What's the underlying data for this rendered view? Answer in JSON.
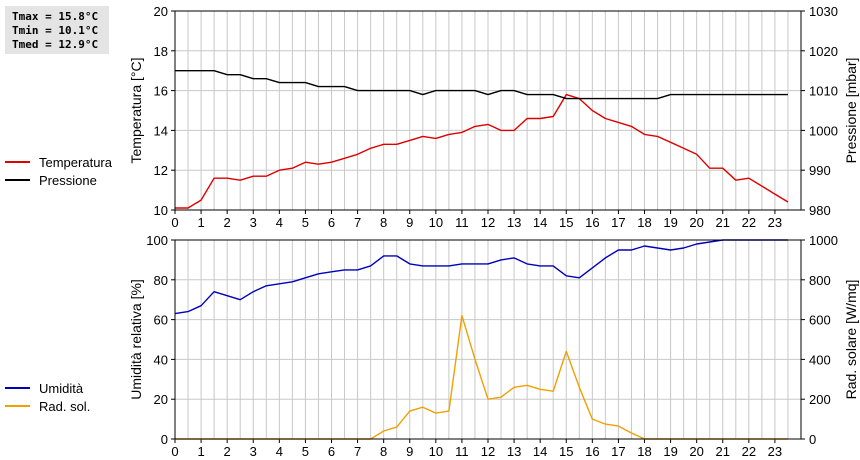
{
  "stats": {
    "tmax": "Tmax = 15.8°C",
    "tmin": "Tmin = 10.1°C",
    "tmed": "Tmed = 12.9°C"
  },
  "colors": {
    "temperature": "#dd0000",
    "pressure": "#000000",
    "humidity": "#0000bb",
    "solar": "#f0a000",
    "grid": "#c8c8c8",
    "background": "#ffffff",
    "stats_box": "#e4e4e4"
  },
  "chart_data": [
    {
      "type": "line",
      "ylabel_left": "Temperatura [°C]",
      "ylabel_right": "Pressione [mbar]",
      "xlim": [
        0,
        24
      ],
      "ylim_left": [
        10,
        20
      ],
      "ylim_right": [
        980,
        1030
      ],
      "x_ticks": [
        "0",
        "1",
        "2",
        "3",
        "4",
        "5",
        "6",
        "7",
        "8",
        "9",
        "10",
        "11",
        "12",
        "13",
        "14",
        "15",
        "16",
        "17",
        "18",
        "19",
        "20",
        "21",
        "22",
        "23"
      ],
      "y_ticks_left": [
        "10",
        "12",
        "14",
        "16",
        "18",
        "20"
      ],
      "y_ticks_right": [
        "980",
        "990",
        "1000",
        "1010",
        "1020",
        "1030"
      ],
      "grid": true,
      "legend_position": "left-outside",
      "series": [
        {
          "name": "Temperatura",
          "axis": "left",
          "x": [
            0,
            0.5,
            1,
            1.5,
            2,
            2.5,
            3,
            3.5,
            4,
            4.5,
            5,
            5.5,
            6,
            6.5,
            7,
            7.5,
            8,
            8.5,
            9,
            9.5,
            10,
            10.5,
            11,
            11.5,
            12,
            12.5,
            13,
            13.5,
            14,
            14.5,
            15,
            15.5,
            16,
            16.5,
            17,
            17.5,
            18,
            18.5,
            19,
            19.5,
            20,
            20.5,
            21,
            21.5,
            22,
            22.5,
            23,
            23.5
          ],
          "values": [
            10.1,
            10.1,
            10.5,
            11.6,
            11.6,
            11.5,
            11.7,
            11.7,
            12.0,
            12.1,
            12.4,
            12.3,
            12.4,
            12.6,
            12.8,
            13.1,
            13.3,
            13.3,
            13.5,
            13.7,
            13.6,
            13.8,
            13.9,
            14.2,
            14.3,
            14.0,
            14.0,
            14.6,
            14.6,
            14.7,
            15.8,
            15.6,
            15.0,
            14.6,
            14.4,
            14.2,
            13.8,
            13.7,
            13.4,
            13.1,
            12.8,
            12.1,
            12.1,
            11.5,
            11.6,
            11.2,
            10.8,
            10.4
          ]
        },
        {
          "name": "Pressione",
          "axis": "right",
          "x": [
            0,
            0.5,
            1,
            1.5,
            2,
            2.5,
            3,
            3.5,
            4,
            4.5,
            5,
            5.5,
            6,
            6.5,
            7,
            7.5,
            8,
            8.5,
            9,
            9.5,
            10,
            10.5,
            11,
            11.5,
            12,
            12.5,
            13,
            13.5,
            14,
            14.5,
            15,
            15.5,
            16,
            16.5,
            17,
            17.5,
            18,
            18.5,
            19,
            19.5,
            20,
            20.5,
            21,
            21.5,
            22,
            22.5,
            23,
            23.5
          ],
          "values": [
            1015,
            1015,
            1015,
            1015,
            1014,
            1014,
            1013,
            1013,
            1012,
            1012,
            1012,
            1011,
            1011,
            1011,
            1010,
            1010,
            1010,
            1010,
            1010,
            1009,
            1010,
            1010,
            1010,
            1010,
            1009,
            1010,
            1010,
            1009,
            1009,
            1009,
            1008,
            1008,
            1008,
            1008,
            1008,
            1008,
            1008,
            1008,
            1009,
            1009,
            1009,
            1009,
            1009,
            1009,
            1009,
            1009,
            1009,
            1009
          ]
        }
      ]
    },
    {
      "type": "line",
      "ylabel_left": "Umidità relativa [%]",
      "ylabel_right": "Rad. solare [W/mq]",
      "xlim": [
        0,
        24
      ],
      "ylim_left": [
        0,
        100
      ],
      "ylim_right": [
        0,
        1000
      ],
      "x_ticks": [
        "0",
        "1",
        "2",
        "3",
        "4",
        "5",
        "6",
        "7",
        "8",
        "9",
        "10",
        "11",
        "12",
        "13",
        "14",
        "15",
        "16",
        "17",
        "18",
        "19",
        "20",
        "21",
        "22",
        "23"
      ],
      "y_ticks_left": [
        "0",
        "20",
        "40",
        "60",
        "80",
        "100"
      ],
      "y_ticks_right": [
        "0",
        "200",
        "400",
        "600",
        "800",
        "1000"
      ],
      "grid": true,
      "legend_position": "left-outside",
      "series": [
        {
          "name": "Umidità",
          "axis": "left",
          "x": [
            0,
            0.5,
            1,
            1.5,
            2,
            2.5,
            3,
            3.5,
            4,
            4.5,
            5,
            5.5,
            6,
            6.5,
            7,
            7.5,
            8,
            8.5,
            9,
            9.5,
            10,
            10.5,
            11,
            11.5,
            12,
            12.5,
            13,
            13.5,
            14,
            14.5,
            15,
            15.5,
            16,
            16.5,
            17,
            17.5,
            18,
            18.5,
            19,
            19.5,
            20,
            20.5,
            21,
            21.5,
            22,
            22.5,
            23,
            23.5
          ],
          "values": [
            63,
            64,
            67,
            74,
            72,
            70,
            74,
            77,
            78,
            79,
            81,
            83,
            84,
            85,
            85,
            87,
            92,
            92,
            88,
            87,
            87,
            87,
            88,
            88,
            88,
            90,
            91,
            88,
            87,
            87,
            82,
            81,
            86,
            91,
            95,
            95,
            97,
            96,
            95,
            96,
            98,
            99,
            100,
            100,
            100,
            100,
            100,
            100
          ]
        },
        {
          "name": "Rad. sol.",
          "axis": "right",
          "x": [
            0,
            0.5,
            1,
            1.5,
            2,
            2.5,
            3,
            3.5,
            4,
            4.5,
            5,
            5.5,
            6,
            6.5,
            7,
            7.5,
            8,
            8.5,
            9,
            9.5,
            10,
            10.5,
            11,
            11.5,
            12,
            12.5,
            13,
            13.5,
            14,
            14.5,
            15,
            15.5,
            16,
            16.5,
            17,
            17.5,
            18,
            18.5,
            19,
            19.5,
            20,
            20.5,
            21,
            21.5,
            22,
            22.5,
            23,
            23.5
          ],
          "values": [
            0,
            0,
            0,
            0,
            0,
            0,
            0,
            0,
            0,
            0,
            0,
            0,
            0,
            0,
            0,
            0,
            40,
            60,
            140,
            160,
            130,
            140,
            620,
            400,
            200,
            210,
            260,
            270,
            250,
            240,
            440,
            260,
            100,
            75,
            65,
            30,
            0,
            0,
            0,
            0,
            0,
            0,
            0,
            0,
            0,
            0,
            0,
            0
          ]
        }
      ]
    }
  ]
}
